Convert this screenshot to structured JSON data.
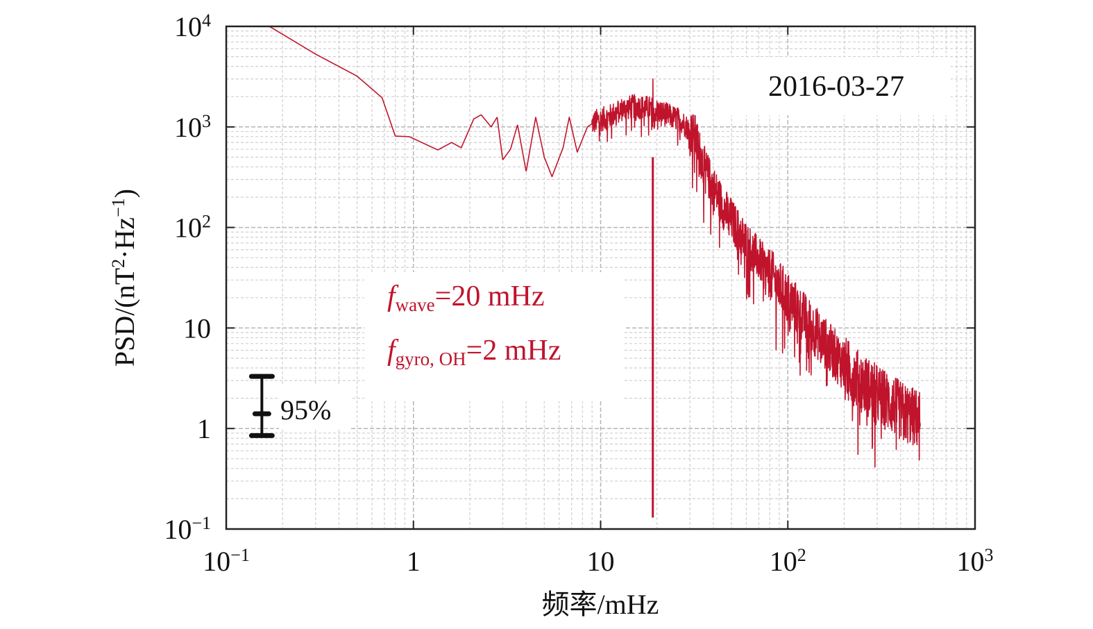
{
  "chart_data": {
    "type": "line",
    "title": "",
    "xlabel": "频率/mHz",
    "ylabel_parts": {
      "base": "PSD/(nT",
      "sq": "2",
      "mid": "·Hz",
      "exp": "−1",
      "end": ")"
    },
    "x_scale": "log",
    "y_scale": "log",
    "xlim": [
      0.1,
      1000
    ],
    "ylim": [
      0.1,
      10000
    ],
    "x_ticks": [
      {
        "value": 0.1,
        "base": "10",
        "exp": "−1"
      },
      {
        "value": 1,
        "base": "1",
        "exp": ""
      },
      {
        "value": 10,
        "base": "10",
        "exp": ""
      },
      {
        "value": 100,
        "base": "10",
        "exp": "2"
      },
      {
        "value": 1000,
        "base": "10",
        "exp": "3"
      }
    ],
    "y_ticks": [
      {
        "value": 0.1,
        "base": "10",
        "exp": "−1"
      },
      {
        "value": 1,
        "base": "1",
        "exp": ""
      },
      {
        "value": 10,
        "base": "10",
        "exp": ""
      },
      {
        "value": 100,
        "base": "10",
        "exp": "2"
      },
      {
        "value": 1000,
        "base": "10",
        "exp": "3"
      },
      {
        "value": 10000,
        "base": "10",
        "exp": "4"
      }
    ],
    "grid": true,
    "date_label": "2016-03-27",
    "series": [
      {
        "color": "#c0142d",
        "envelope": [
          {
            "x": 0.17,
            "y": 10000
          },
          {
            "x": 0.3,
            "y": 5300
          },
          {
            "x": 0.5,
            "y": 3200
          },
          {
            "x": 0.68,
            "y": 1950
          },
          {
            "x": 0.8,
            "y": 810
          },
          {
            "x": 0.95,
            "y": 800
          },
          {
            "x": 1.35,
            "y": 590
          },
          {
            "x": 1.6,
            "y": 700
          },
          {
            "x": 1.8,
            "y": 620
          },
          {
            "x": 2.1,
            "y": 1200
          },
          {
            "x": 2.3,
            "y": 1320
          },
          {
            "x": 2.6,
            "y": 1000
          },
          {
            "x": 2.8,
            "y": 1250
          },
          {
            "x": 3.0,
            "y": 470
          },
          {
            "x": 3.3,
            "y": 600
          },
          {
            "x": 3.6,
            "y": 1050
          },
          {
            "x": 4.0,
            "y": 360
          },
          {
            "x": 4.5,
            "y": 1250
          },
          {
            "x": 5.0,
            "y": 500
          },
          {
            "x": 5.5,
            "y": 320
          },
          {
            "x": 6.3,
            "y": 620
          },
          {
            "x": 6.8,
            "y": 1250
          },
          {
            "x": 7.5,
            "y": 560
          },
          {
            "x": 8.5,
            "y": 1000
          },
          {
            "x": 9.5,
            "y": 1150
          },
          {
            "x": 11,
            "y": 1250
          },
          {
            "x": 13,
            "y": 1500
          },
          {
            "x": 15,
            "y": 1600
          },
          {
            "x": 18,
            "y": 1550
          },
          {
            "x": 22,
            "y": 1350
          },
          {
            "x": 27,
            "y": 1150
          },
          {
            "x": 32,
            "y": 800
          },
          {
            "x": 36,
            "y": 380
          },
          {
            "x": 45,
            "y": 160
          },
          {
            "x": 60,
            "y": 70
          },
          {
            "x": 80,
            "y": 35
          },
          {
            "x": 100,
            "y": 20
          },
          {
            "x": 130,
            "y": 11
          },
          {
            "x": 170,
            "y": 6
          },
          {
            "x": 230,
            "y": 3.2
          },
          {
            "x": 300,
            "y": 2.2
          },
          {
            "x": 400,
            "y": 1.5
          },
          {
            "x": 510,
            "y": 1.2
          }
        ],
        "peak": {
          "x": 19,
          "y": 3000
        }
      }
    ],
    "vertical_marker": {
      "x": 19,
      "y_from": 0.13,
      "y_to": 500,
      "color": "#c0142d"
    },
    "annotations": {
      "line1": {
        "f": "f",
        "sub": "wave",
        "rest": "=20 mHz"
      },
      "line2": {
        "f": "f",
        "sub": "gyro, OH",
        "rest": "=2 mHz"
      }
    },
    "confidence_interval": {
      "label": "95%",
      "upper": 3.3,
      "center": 1.4,
      "lower": 0.85,
      "x": 0.155
    }
  }
}
